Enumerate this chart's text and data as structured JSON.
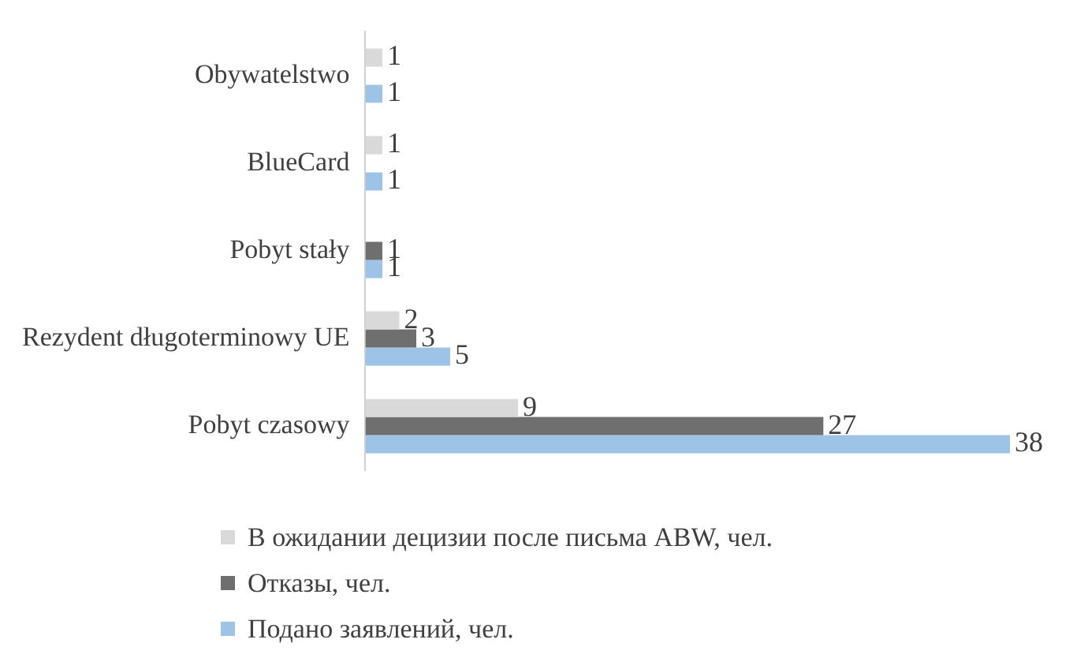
{
  "chart_data": {
    "type": "bar",
    "orientation": "horizontal",
    "categories": [
      "Obywatelstwo",
      "BlueCard",
      "Pobyt stały",
      "Rezydent długoterminowy UE",
      "Pobyt czasowy"
    ],
    "series": [
      {
        "name": "В ожидании децизии после письма ABW, чел.",
        "color": "#d9d9d9",
        "values": [
          1,
          1,
          null,
          2,
          9
        ]
      },
      {
        "name": "Отказы, чел.",
        "color": "#6f6f6f",
        "values": [
          null,
          null,
          1,
          3,
          27
        ]
      },
      {
        "name": "Подано заявлений, чел.",
        "color": "#9dc3e6",
        "values": [
          1,
          1,
          1,
          5,
          38
        ]
      }
    ],
    "data_labels": true,
    "legend": "bottom"
  }
}
